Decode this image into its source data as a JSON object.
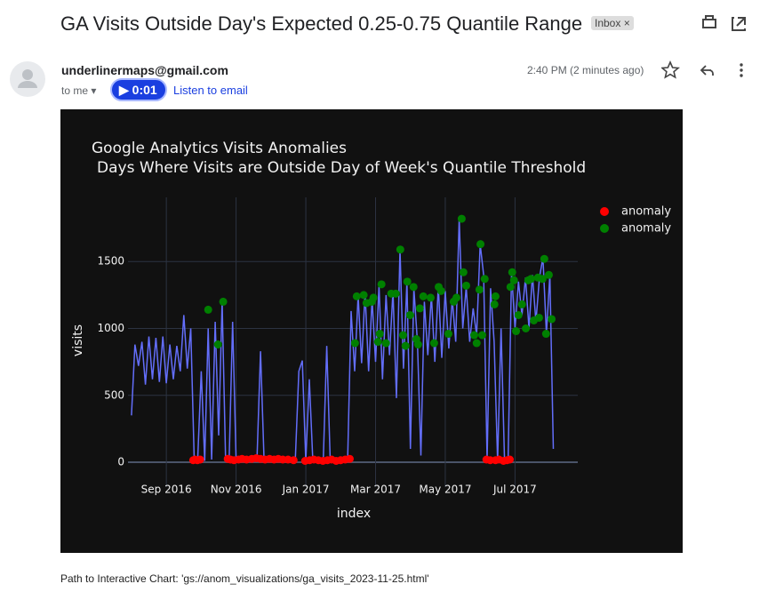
{
  "email": {
    "subject": "GA Visits Outside Day's Expected 0.25-0.75 Quantile Range",
    "label": "Inbox",
    "sender": "underlinermaps@gmail.com",
    "recipient": "to me",
    "audio_time": "0:01",
    "listen_link": "Listen to email",
    "time": "2:40 PM (2 minutes ago)",
    "footer": "Path to Interactive Chart: 'gs://anom_visualizations/ga_visits_2023-11-25.html'"
  },
  "chart_data": {
    "type": "line",
    "title": "Google Analytics Visits Anomalies",
    "subtitle": "Days Where Visits are Outside Day of Week's Quantile Threshold",
    "x_label": "index",
    "y_label": "visits",
    "xlim": [
      7.9,
      20.8
    ],
    "xticks": [
      {
        "value": 9,
        "label": "Sep 2016"
      },
      {
        "value": 11,
        "label": "Nov 2016"
      },
      {
        "value": 13,
        "label": "Jan 2017"
      },
      {
        "value": 15,
        "label": "Mar 2017"
      },
      {
        "value": 17,
        "label": "May 2017"
      },
      {
        "value": 19,
        "label": "Jul 2017"
      }
    ],
    "ylim": [
      -186,
      1980
    ],
    "yticks": [
      0,
      500,
      1000,
      1500
    ],
    "grid": true,
    "legend": "right",
    "series": [
      {
        "type": "line",
        "color": "#636efa",
        "x": [
          8.0,
          8.1,
          8.2,
          8.3,
          8.4,
          8.5,
          8.6,
          8.7,
          8.8,
          8.9,
          9.0,
          9.1,
          9.2,
          9.3,
          9.4,
          9.5,
          9.6,
          9.7,
          9.8,
          9.9,
          10.0,
          10.1,
          10.2,
          10.3,
          10.4,
          10.5,
          10.6,
          10.7,
          10.8,
          10.9,
          11.0,
          11.1,
          11.2,
          11.3,
          11.4,
          11.5,
          11.6,
          11.7,
          11.8,
          11.9,
          12.0,
          12.1,
          12.2,
          12.3,
          12.4,
          12.5,
          12.6,
          12.7,
          12.8,
          12.9,
          13.0,
          13.1,
          13.2,
          13.3,
          13.4,
          13.5,
          13.6,
          13.7,
          13.8,
          13.9,
          14.0,
          14.1,
          14.2,
          14.3,
          14.4,
          14.5,
          14.6,
          14.7,
          14.8,
          14.9,
          15.0,
          15.1,
          15.2,
          15.3,
          15.4,
          15.5,
          15.6,
          15.7,
          15.8,
          15.9,
          16.0,
          16.1,
          16.2,
          16.3,
          16.4,
          16.5,
          16.6,
          16.7,
          16.8,
          16.9,
          17.0,
          17.1,
          17.2,
          17.3,
          17.4,
          17.5,
          17.6,
          17.7,
          17.8,
          17.9,
          18.0,
          18.1,
          18.2,
          18.3,
          18.4,
          18.5,
          18.6,
          18.7,
          18.8,
          18.9,
          19.0,
          19.1,
          19.2,
          19.3,
          19.4,
          19.5,
          19.6,
          19.7,
          19.8,
          19.9,
          20.0,
          20.1
        ],
        "values": [
          350,
          880,
          720,
          900,
          580,
          940,
          620,
          930,
          600,
          940,
          590,
          880,
          620,
          870,
          680,
          1100,
          700,
          1000,
          15,
          20,
          680,
          10,
          1000,
          20,
          1050,
          200,
          1200,
          15,
          20,
          1050,
          20,
          25,
          20,
          30,
          25,
          30,
          20,
          830,
          30,
          25,
          30,
          20,
          30,
          25,
          20,
          30,
          25,
          30,
          680,
          760,
          10,
          620,
          15,
          20,
          10,
          15,
          870,
          10,
          20,
          15,
          25,
          20,
          15,
          1130,
          680,
          1250,
          740,
          1270,
          680,
          1220,
          750,
          1320,
          620,
          1250,
          800,
          1280,
          480,
          1590,
          700,
          1350,
          100,
          1300,
          900,
          50,
          1200,
          800,
          1250,
          750,
          1320,
          780,
          1280,
          850,
          1220,
          900,
          1820,
          1000,
          1310,
          900,
          1150,
          950,
          1630,
          1400,
          20,
          1300,
          900,
          10,
          1000,
          10,
          10,
          1420,
          1000,
          1350,
          1100,
          1380,
          1000,
          1400,
          1050,
          1380,
          1530,
          960,
          1400,
          100
        ]
      },
      {
        "type": "scatter",
        "name": "anomaly",
        "color": "#ff0000",
        "x": [
          9.77,
          9.82,
          9.89,
          9.97,
          10.76,
          10.84,
          10.94,
          11.07,
          11.17,
          11.3,
          11.45,
          11.58,
          11.7,
          11.83,
          11.96,
          12.09,
          12.21,
          12.34,
          12.49,
          12.65,
          12.98,
          13.11,
          13.23,
          13.36,
          13.49,
          13.62,
          13.74,
          13.87,
          14.0,
          14.13,
          14.26,
          18.18,
          18.29,
          18.44,
          18.54,
          18.67,
          18.77,
          18.85
        ],
        "values": [
          15,
          20,
          15,
          20,
          25,
          20,
          15,
          20,
          25,
          20,
          25,
          30,
          25,
          20,
          25,
          20,
          25,
          20,
          20,
          15,
          10,
          15,
          20,
          15,
          10,
          15,
          20,
          10,
          15,
          20,
          25,
          20,
          15,
          15,
          20,
          10,
          15,
          20
        ]
      },
      {
        "type": "scatter",
        "name": "anomaly",
        "color": "#008000",
        "x": [
          10.2,
          10.48,
          10.63,
          14.41,
          14.46,
          14.66,
          14.74,
          14.89,
          14.94,
          15.07,
          15.12,
          15.17,
          15.3,
          15.45,
          15.58,
          15.71,
          15.79,
          15.86,
          15.91,
          15.99,
          16.09,
          16.17,
          16.22,
          16.27,
          16.37,
          16.58,
          16.68,
          16.81,
          16.88,
          17.09,
          17.24,
          17.32,
          17.47,
          17.52,
          17.6,
          17.83,
          17.9,
          17.98,
          18.01,
          18.06,
          18.13,
          18.41,
          18.44,
          18.87,
          18.92,
          18.97,
          19.03,
          19.1,
          19.2,
          19.31,
          19.38,
          19.46,
          19.54,
          19.66,
          19.69,
          19.79,
          19.84,
          19.89,
          19.97,
          20.05
        ],
        "values": [
          1140,
          880,
          1200,
          890,
          1240,
          1250,
          1190,
          1200,
          1230,
          900,
          960,
          1330,
          890,
          1260,
          1260,
          1590,
          950,
          870,
          1350,
          1100,
          1310,
          920,
          880,
          1150,
          1240,
          1230,
          890,
          1310,
          1280,
          960,
          1200,
          1230,
          1820,
          1420,
          1320,
          950,
          890,
          1290,
          1630,
          950,
          1370,
          1180,
          1240,
          1310,
          1420,
          1360,
          980,
          1100,
          1180,
          1000,
          1360,
          1370,
          1060,
          1380,
          1080,
          1370,
          1520,
          960,
          1400,
          1070
        ]
      }
    ]
  }
}
